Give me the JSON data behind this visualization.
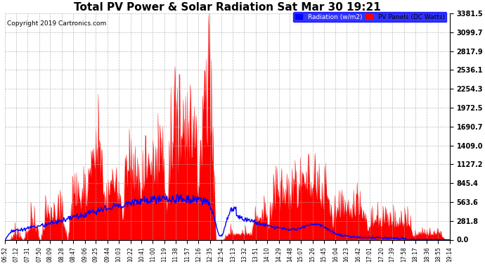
{
  "title": "Total PV Power & Solar Radiation Sat Mar 30 19:21",
  "copyright": "Copyright 2019 Cartronics.com",
  "yticks": [
    0.0,
    281.8,
    563.6,
    845.4,
    1127.2,
    1409.0,
    1690.7,
    1972.5,
    2254.3,
    2536.1,
    2817.9,
    3099.7,
    3381.5
  ],
  "ymax": 3381.5,
  "ymin": 0.0,
  "legend_labels": [
    "Radiation (w/m2)",
    "PV Panels (DC Watts)"
  ],
  "background_color": "#ffffff",
  "grid_color": "#aaaaaa",
  "title_fontsize": 11,
  "tick_labels": [
    "06:52",
    "07:12",
    "07:31",
    "07:50",
    "08:09",
    "08:28",
    "08:47",
    "09:06",
    "09:25",
    "09:44",
    "10:03",
    "10:22",
    "10:41",
    "11:00",
    "11:19",
    "11:38",
    "11:57",
    "12:16",
    "12:35",
    "12:54",
    "13:13",
    "13:32",
    "13:51",
    "14:10",
    "14:29",
    "14:48",
    "15:07",
    "15:26",
    "15:45",
    "16:04",
    "16:23",
    "16:42",
    "17:01",
    "17:20",
    "17:39",
    "17:58",
    "18:17",
    "18:36",
    "18:55",
    "19:14"
  ]
}
